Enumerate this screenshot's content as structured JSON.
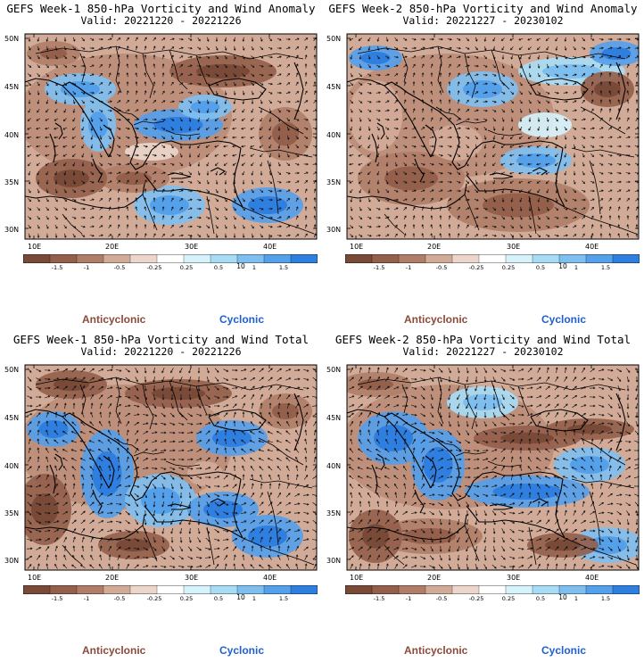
{
  "panels": [
    {
      "title": "GEFS Week-1 850-hPa Vorticity and Wind Anomaly",
      "valid": "Valid: 20221220 - 20221226"
    },
    {
      "title": "GEFS Week-2 850-hPa Vorticity and Wind Anomaly",
      "valid": "Valid: 20221227 - 20230102"
    },
    {
      "title": "GEFS Week-1 850-hPa Vorticity and Wind Total",
      "valid": "Valid: 20221220 - 20221226"
    },
    {
      "title": "GEFS Week-2 850-hPa Vorticity and Wind Total",
      "valid": "Valid: 20221227 - 20230102"
    }
  ],
  "lat_labels": [
    "50N",
    "45N",
    "40N",
    "35N",
    "30N"
  ],
  "lon_labels": [
    "10E",
    "20E",
    "30E",
    "40E"
  ],
  "colorbar": {
    "ticks": [
      "-1.5",
      "-1",
      "-0.5",
      "-0.25",
      "0.25",
      "0.5",
      "1",
      "1.5"
    ],
    "scale_label": "10",
    "colors": [
      "#7a4a38",
      "#94604c",
      "#b07e68",
      "#d2ab98",
      "#ecd6cb",
      "#ffffff",
      "#d6f2fb",
      "#a8dcf5",
      "#7fbff0",
      "#55a0ea",
      "#2f7fe0"
    ]
  },
  "legend": {
    "anticyclonic": "Anticyclonic",
    "cyclonic": "Cyclonic"
  }
}
